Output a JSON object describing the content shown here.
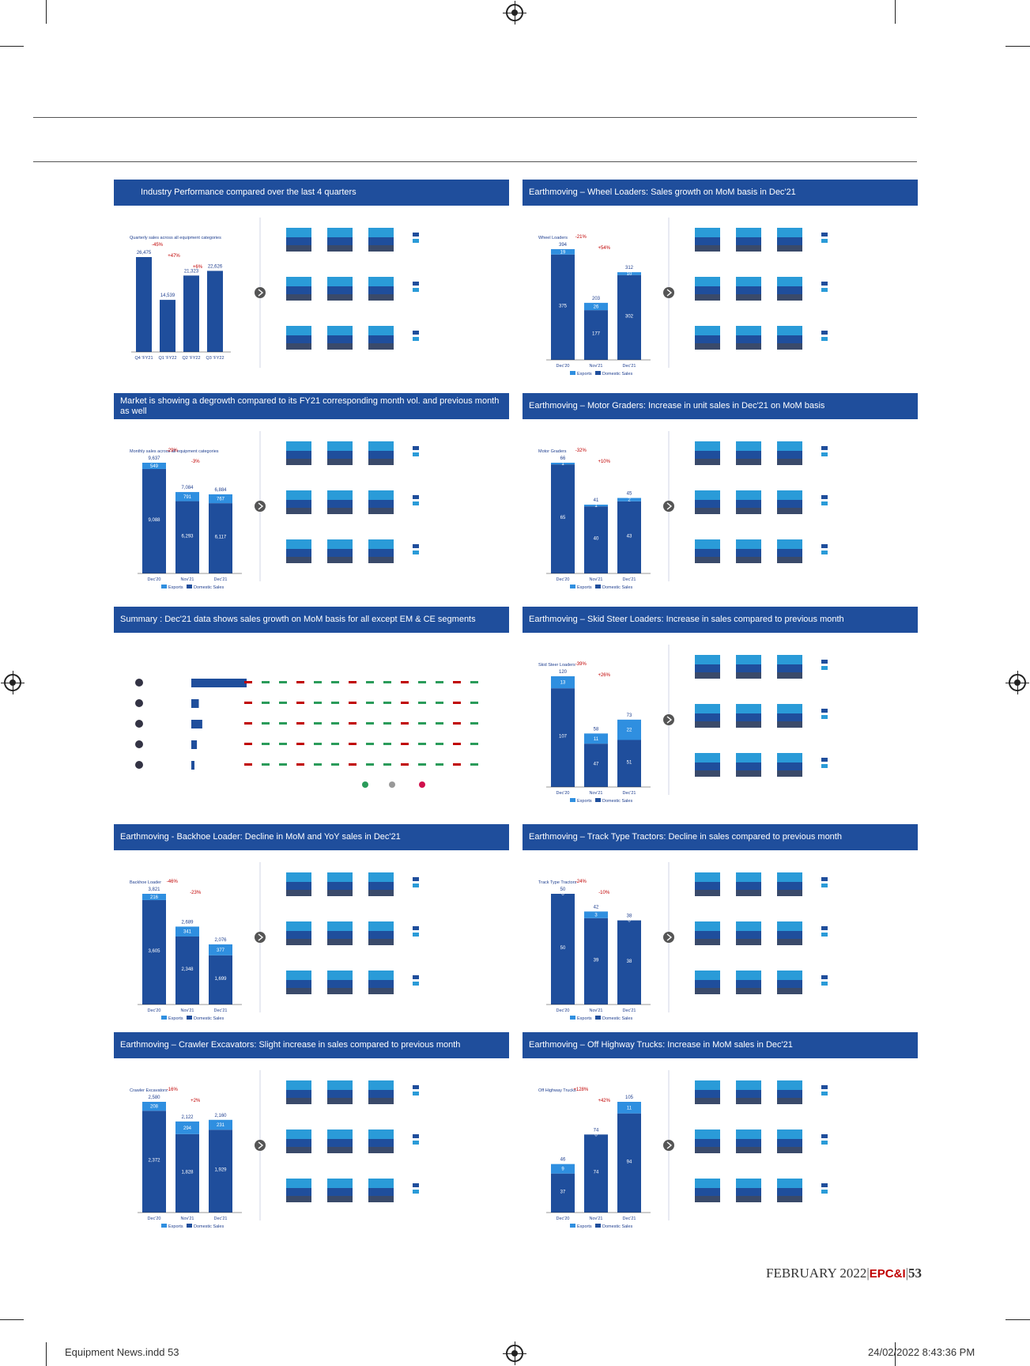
{
  "panels": [
    {
      "title": "Industry Performance compared over the last 4 quarters",
      "centered": true
    },
    {
      "title": "Earthmoving – Wheel Loaders: Sales growth on MoM basis in Dec'21",
      "centered": false
    },
    {
      "title": "Market is showing a degrowth compared to its FY21 corresponding month vol. and  previous month as well",
      "centered": false
    },
    {
      "title": "Earthmoving – Motor Graders: Increase in unit sales in Dec'21 on MoM basis",
      "centered": false
    },
    {
      "title": "Summary : Dec'21 data shows sales growth on MoM basis for all except  EM & CE segments",
      "centered": false
    },
    {
      "title": "Earthmoving – Skid Steer Loaders: Increase in sales compared to previous month",
      "centered": false
    },
    {
      "title": "Earthmoving - Backhoe Loader: Decline in MoM and YoY sales in Dec'21",
      "centered": false
    },
    {
      "title": "Earthmoving – Track Type Tractors: Decline in sales compared to previous month",
      "centered": false
    },
    {
      "title": "Earthmoving – Crawler Excavators: Slight increase in sales compared to previous month",
      "centered": false
    },
    {
      "title": "Earthmoving – Off Highway Trucks: Increase in MoM sales in Dec'21",
      "centered": false
    }
  ],
  "chart_data": [
    {
      "type": "bar",
      "title": "Quarterly sales across all equipment categories",
      "categories": [
        "Q4 'FY21",
        "Q1 'FY22",
        "Q2 'FY22",
        "Q3 'FY22"
      ],
      "values": [
        26475,
        14539,
        21323,
        22626
      ],
      "annotations": [
        "-45%",
        "+47%",
        "+6%"
      ]
    },
    {
      "type": "bar",
      "title": "Wheel Loaders",
      "categories": [
        "Dec'20",
        "Nov'21",
        "Dec'21"
      ],
      "series": [
        {
          "name": "Domestic",
          "values": [
            375,
            177,
            302
          ]
        },
        {
          "name": "Exports",
          "values": [
            19,
            26,
            10
          ]
        }
      ],
      "totals": [
        394,
        203,
        312
      ],
      "annotations": [
        "-21%",
        "+54%"
      ]
    },
    {
      "type": "bar",
      "title": "Monthly sales across all equipment categories",
      "categories": [
        "Dec'20",
        "Nov'21",
        "Dec'21"
      ],
      "series": [
        {
          "name": "Domestic",
          "values": [
            9088,
            6293,
            6117
          ]
        },
        {
          "name": "Exports",
          "values": [
            549,
            791,
            767
          ]
        }
      ],
      "totals": [
        9637,
        7084,
        6884
      ],
      "annotations": [
        "-29%",
        "-3%"
      ]
    },
    {
      "type": "bar",
      "title": "Motor Graders",
      "categories": [
        "Dec'20",
        "Nov'21",
        "Dec'21"
      ],
      "series": [
        {
          "name": "Domestic",
          "values": [
            65,
            40,
            43
          ]
        },
        {
          "name": "Exports",
          "values": [
            1,
            1,
            2
          ]
        }
      ],
      "totals": [
        66,
        41,
        45
      ],
      "annotations": [
        "-32%",
        "+10%"
      ]
    },
    {
      "type": "bar",
      "title": "Skid Steer Loaders",
      "categories": [
        "Dec'20",
        "Nov'21",
        "Dec'21"
      ],
      "series": [
        {
          "name": "Domestic",
          "values": [
            107,
            47,
            51
          ]
        },
        {
          "name": "Exports",
          "values": [
            13,
            11,
            22
          ]
        }
      ],
      "totals": [
        120,
        58,
        73
      ],
      "annotations": [
        "-39%",
        "+26%"
      ]
    },
    {
      "type": "bar",
      "title": "Backhoe Loader",
      "categories": [
        "Dec'20",
        "Nov'21",
        "Dec'21"
      ],
      "series": [
        {
          "name": "Domestic",
          "values": [
            3605,
            2348,
            1699
          ]
        },
        {
          "name": "Exports",
          "values": [
            216,
            341,
            377
          ]
        }
      ],
      "totals": [
        3821,
        2689,
        2076
      ],
      "annotations": [
        "-46%",
        "-23%"
      ]
    },
    {
      "type": "bar",
      "title": "Track Type Tractors",
      "categories": [
        "Dec'20",
        "Nov'21",
        "Dec'21"
      ],
      "series": [
        {
          "name": "Domestic",
          "values": [
            50,
            39,
            38
          ]
        },
        {
          "name": "Exports",
          "values": [
            0,
            3,
            0
          ]
        }
      ],
      "totals": [
        50,
        42,
        38
      ],
      "annotations": [
        "-24%",
        "-10%"
      ]
    },
    {
      "type": "bar",
      "title": "Crawler Excavators",
      "categories": [
        "Dec'20",
        "Nov'21",
        "Dec'21"
      ],
      "series": [
        {
          "name": "Domestic",
          "values": [
            2372,
            1828,
            1929
          ]
        },
        {
          "name": "Exports",
          "values": [
            208,
            294,
            231
          ]
        }
      ],
      "totals": [
        2580,
        2122,
        2160
      ],
      "annotations": [
        "-16%",
        "+2%"
      ]
    },
    {
      "type": "bar",
      "title": "Off Highway Trucks",
      "categories": [
        "Dec'20",
        "Nov'21",
        "Dec'21"
      ],
      "series": [
        {
          "name": "Domestic",
          "values": [
            37,
            74,
            94
          ]
        },
        {
          "name": "Exports",
          "values": [
            9,
            0,
            11
          ]
        }
      ],
      "totals": [
        46,
        74,
        105
      ],
      "annotations": [
        "+128%",
        "+42%"
      ]
    }
  ],
  "legend": {
    "exports": "Exports",
    "domestic": "Domestic Sales"
  },
  "footer": {
    "month": "FEBRUARY 2022",
    "brand": "EPC&I",
    "page": "53",
    "slug_file": "Equipment News.indd  53",
    "slug_date": "24/02/2022  8:43:36 PM"
  },
  "colors": {
    "header": "#1f4e9c",
    "domestic": "#1f4e9c",
    "exports": "#2f8fe0",
    "accent": "#c00000"
  }
}
